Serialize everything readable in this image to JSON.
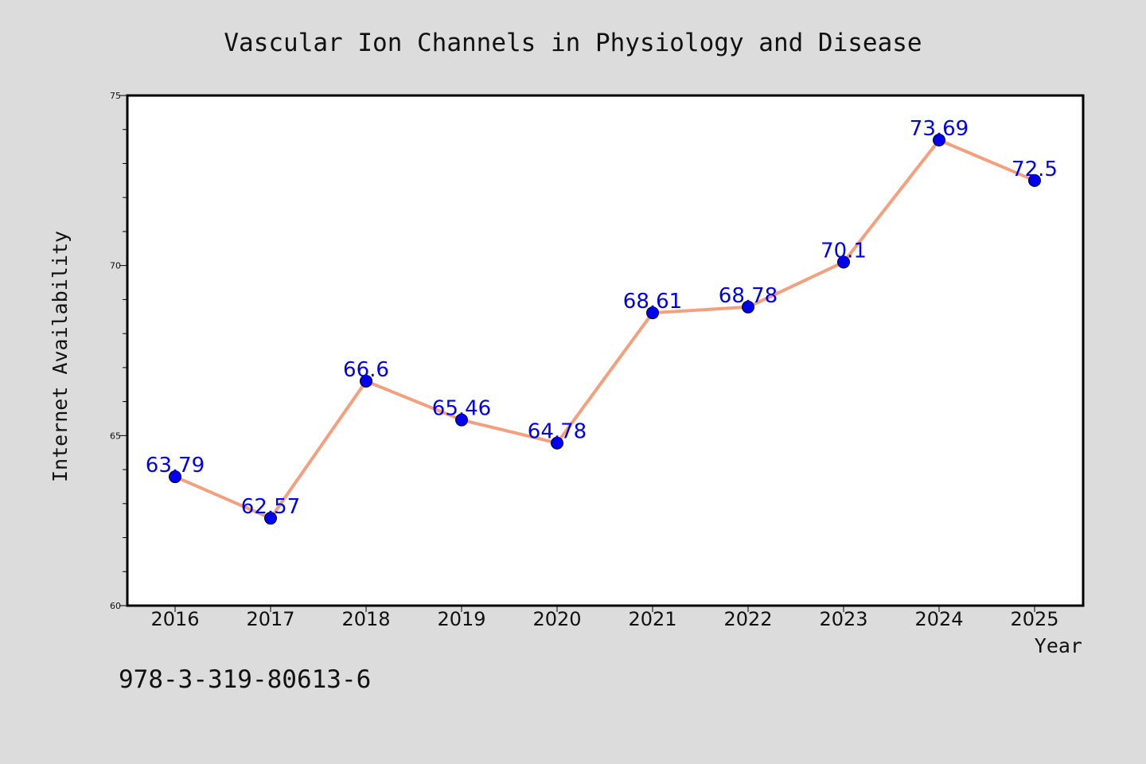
{
  "chart_data": {
    "type": "line",
    "title": "Vascular Ion Channels in Physiology and Disease",
    "xlabel": "Year",
    "ylabel": "Internet Availability",
    "categories": [
      "2016",
      "2017",
      "2018",
      "2019",
      "2020",
      "2021",
      "2022",
      "2023",
      "2024",
      "2025"
    ],
    "series": [
      {
        "values": [
          63.79,
          62.57,
          66.6,
          65.46,
          64.78,
          68.61,
          68.78,
          70.1,
          73.69,
          72.5
        ],
        "labels": [
          "63.79",
          "62.57",
          "66.6",
          "65.46",
          "64.78",
          "68.61",
          "68.78",
          "70.1",
          "73.69",
          "72.5"
        ]
      }
    ],
    "ylim": [
      60,
      75
    ],
    "yticks": [
      "60",
      "65",
      "70",
      "75"
    ],
    "grid": false,
    "colors": {
      "line": "#f4a07e",
      "marker": "#0000ee",
      "label": "#0000ee"
    }
  },
  "footer": {
    "isbn": "978-3-319-80613-6"
  }
}
